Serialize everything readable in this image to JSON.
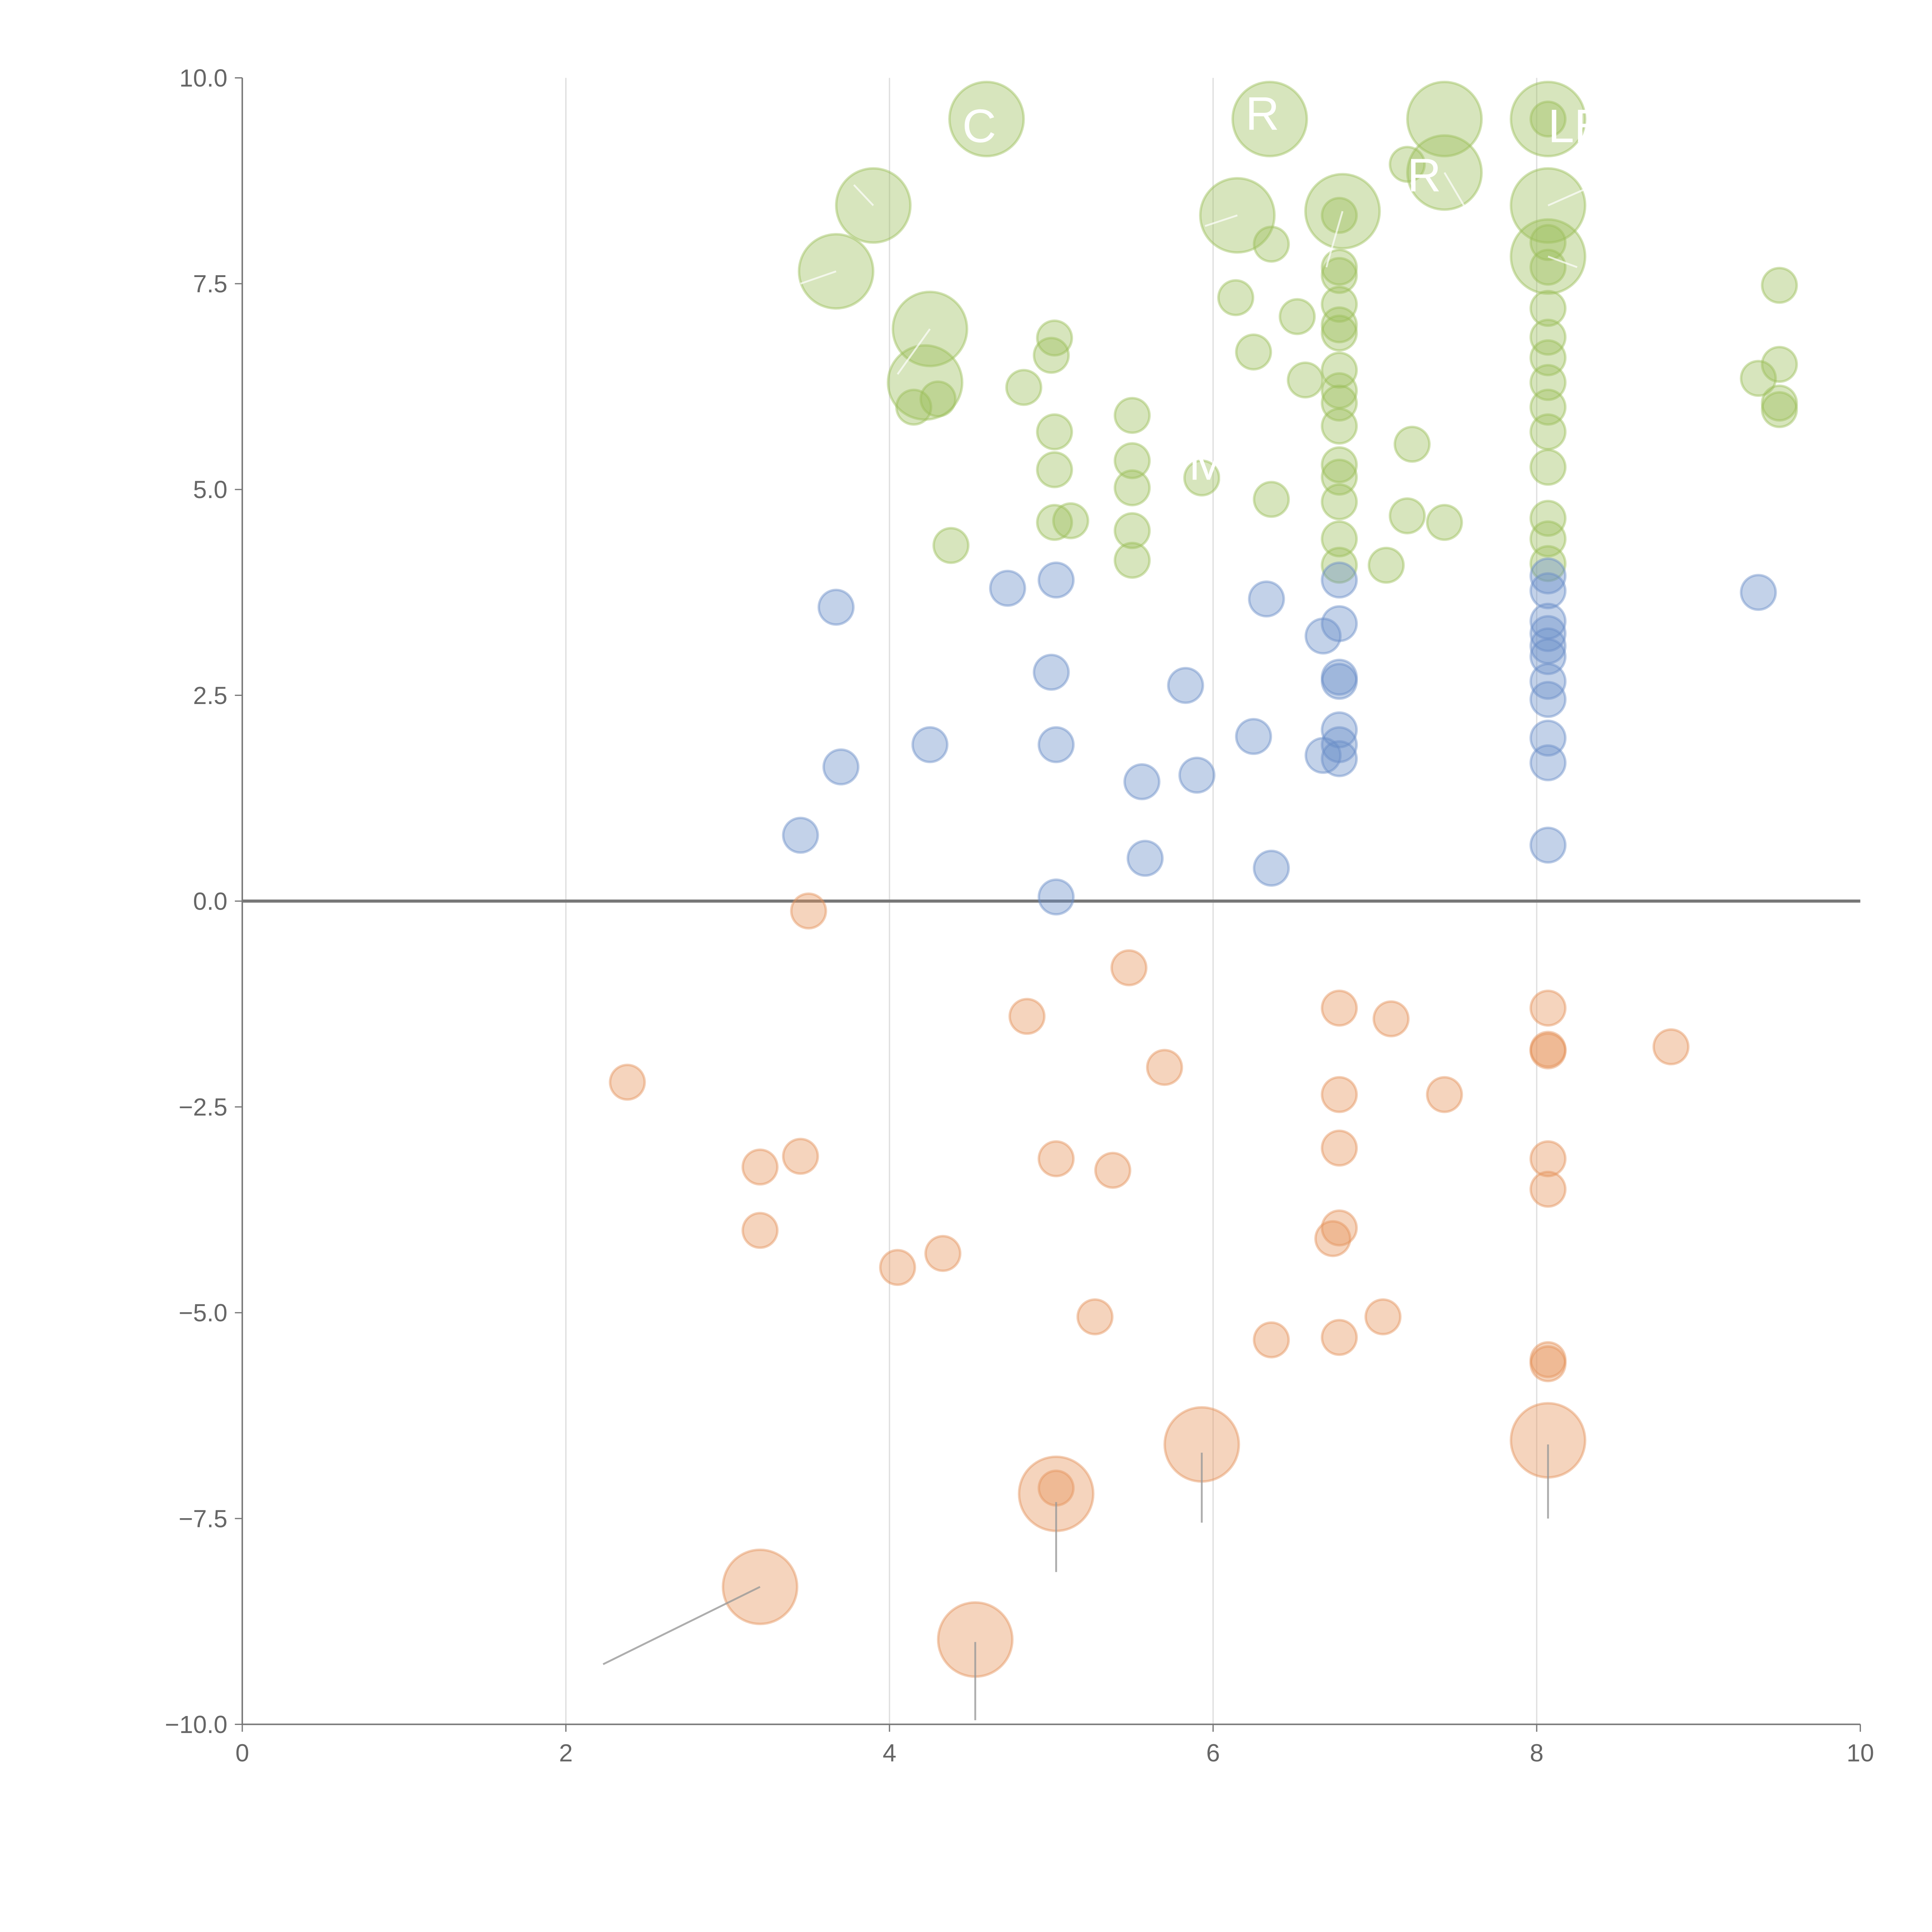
{
  "chart_data": {
    "type": "scatter",
    "title": "",
    "xlabel": "",
    "ylabel": "",
    "xlim": [
      0,
      10
    ],
    "ylim": [
      -10,
      10
    ],
    "x_ticks": [
      "0",
      "2",
      "4",
      "6",
      "8",
      "10"
    ],
    "y_ticks": [
      "−10.0",
      "−7.5",
      "−5.0",
      "−2.5",
      "0.0",
      "2.5",
      "5.0",
      "7.5",
      "10.0"
    ],
    "grid": "vertical lines at x ticks",
    "legend": "none",
    "colors": {
      "green": "#9bbf59",
      "blue": "#6a8fc8",
      "orange": "#e5935a",
      "axis": "#777777"
    },
    "series": [
      {
        "name": "green",
        "size": "small",
        "points": [
          [
            4.15,
            6.0
          ],
          [
            4.3,
            6.1
          ],
          [
            4.38,
            4.32
          ],
          [
            4.83,
            6.24
          ],
          [
            5.02,
            6.84
          ],
          [
            5.0,
            6.63
          ],
          [
            5.02,
            5.7
          ],
          [
            5.02,
            5.24
          ],
          [
            5.02,
            4.6
          ],
          [
            5.12,
            4.62
          ],
          [
            5.5,
            5.9
          ],
          [
            5.5,
            5.35
          ],
          [
            5.5,
            5.02
          ],
          [
            5.5,
            4.5
          ],
          [
            5.5,
            4.14
          ],
          [
            5.93,
            5.14
          ],
          [
            6.14,
            7.33
          ],
          [
            6.25,
            6.67
          ],
          [
            6.36,
            7.98
          ],
          [
            6.36,
            4.88
          ],
          [
            6.52,
            7.1
          ],
          [
            6.57,
            6.33
          ],
          [
            6.78,
            8.33
          ],
          [
            6.78,
            7.7
          ],
          [
            6.78,
            7.6
          ],
          [
            6.78,
            7.25
          ],
          [
            6.78,
            7.0
          ],
          [
            6.78,
            6.9
          ],
          [
            6.78,
            6.45
          ],
          [
            6.78,
            6.2
          ],
          [
            6.78,
            6.05
          ],
          [
            6.78,
            5.77
          ],
          [
            6.78,
            5.3
          ],
          [
            6.78,
            5.15
          ],
          [
            6.78,
            4.85
          ],
          [
            6.78,
            4.4
          ],
          [
            6.78,
            4.08
          ],
          [
            7.07,
            4.08
          ],
          [
            7.2,
            8.95
          ],
          [
            7.23,
            5.55
          ],
          [
            7.2,
            4.68
          ],
          [
            7.43,
            4.6
          ],
          [
            8.07,
            9.5
          ],
          [
            8.07,
            8.0
          ],
          [
            8.07,
            7.7
          ],
          [
            8.07,
            7.2
          ],
          [
            8.07,
            6.85
          ],
          [
            8.07,
            6.6
          ],
          [
            8.07,
            6.3
          ],
          [
            8.07,
            6.0
          ],
          [
            8.07,
            5.7
          ],
          [
            8.07,
            5.27
          ],
          [
            8.07,
            4.65
          ],
          [
            8.07,
            4.4
          ],
          [
            8.07,
            4.1
          ],
          [
            9.37,
            6.35
          ],
          [
            9.5,
            7.48
          ],
          [
            9.5,
            6.52
          ],
          [
            9.5,
            6.05
          ],
          [
            9.5,
            5.97
          ]
        ]
      },
      {
        "name": "green",
        "size": "large",
        "points": [
          [
            3.67,
            7.65
          ],
          [
            3.9,
            8.45
          ],
          [
            4.22,
            6.3
          ],
          [
            4.25,
            6.95
          ],
          [
            4.6,
            9.5
          ],
          [
            6.15,
            8.33
          ],
          [
            6.35,
            9.5
          ],
          [
            6.8,
            8.38
          ],
          [
            7.43,
            9.5
          ],
          [
            7.43,
            8.85
          ],
          [
            8.07,
            9.5
          ],
          [
            8.07,
            8.45
          ],
          [
            8.07,
            7.83
          ]
        ]
      },
      {
        "name": "blue",
        "size": "small",
        "points": [
          [
            3.45,
            0.8
          ],
          [
            3.67,
            3.57
          ],
          [
            3.7,
            1.63
          ],
          [
            4.25,
            1.9
          ],
          [
            4.73,
            3.8
          ],
          [
            5.0,
            2.78
          ],
          [
            5.03,
            3.9
          ],
          [
            5.03,
            1.9
          ],
          [
            5.03,
            0.05
          ],
          [
            5.56,
            1.45
          ],
          [
            5.58,
            0.52
          ],
          [
            5.83,
            2.62
          ],
          [
            5.9,
            1.53
          ],
          [
            6.25,
            2.0
          ],
          [
            6.33,
            3.67
          ],
          [
            6.36,
            0.4
          ],
          [
            6.68,
            3.22
          ],
          [
            6.68,
            1.77
          ],
          [
            6.78,
            3.9
          ],
          [
            6.78,
            3.37
          ],
          [
            6.78,
            2.72
          ],
          [
            6.78,
            2.67
          ],
          [
            6.78,
            2.08
          ],
          [
            6.78,
            1.9
          ],
          [
            6.78,
            1.73
          ],
          [
            8.07,
            3.95
          ],
          [
            8.07,
            3.77
          ],
          [
            8.07,
            3.4
          ],
          [
            8.07,
            3.25
          ],
          [
            8.07,
            3.1
          ],
          [
            8.07,
            2.97
          ],
          [
            8.07,
            2.67
          ],
          [
            8.07,
            2.45
          ],
          [
            8.07,
            1.98
          ],
          [
            8.07,
            1.68
          ],
          [
            8.07,
            0.68
          ],
          [
            9.37,
            3.75
          ]
        ]
      },
      {
        "name": "orange",
        "size": "small",
        "points": [
          [
            2.38,
            -2.2
          ],
          [
            3.2,
            -3.23
          ],
          [
            3.2,
            -4.0
          ],
          [
            3.45,
            -3.1
          ],
          [
            3.5,
            -0.12
          ],
          [
            4.05,
            -4.45
          ],
          [
            4.33,
            -4.28
          ],
          [
            4.85,
            -1.4
          ],
          [
            5.03,
            -3.13
          ],
          [
            5.03,
            -7.13
          ],
          [
            5.27,
            -5.05
          ],
          [
            5.38,
            -3.27
          ],
          [
            5.48,
            -0.81
          ],
          [
            5.7,
            -2.02
          ],
          [
            6.36,
            -5.33
          ],
          [
            6.74,
            -4.1
          ],
          [
            6.78,
            -1.3
          ],
          [
            6.78,
            -2.35
          ],
          [
            6.78,
            -3.0
          ],
          [
            6.78,
            -3.97
          ],
          [
            6.78,
            -5.3
          ],
          [
            7.05,
            -5.05
          ],
          [
            7.1,
            -1.43
          ],
          [
            7.43,
            -2.35
          ],
          [
            8.07,
            -1.3
          ],
          [
            8.07,
            -1.8
          ],
          [
            8.07,
            -1.82
          ],
          [
            8.07,
            -3.13
          ],
          [
            8.07,
            -3.5
          ],
          [
            8.07,
            -5.57
          ],
          [
            8.07,
            -5.62
          ],
          [
            8.83,
            -1.77
          ]
        ]
      },
      {
        "name": "orange",
        "size": "large",
        "points": [
          [
            3.2,
            -8.33
          ],
          [
            4.53,
            -8.97
          ],
          [
            5.03,
            -7.2
          ],
          [
            5.93,
            -6.6
          ],
          [
            8.07,
            -6.55
          ]
        ]
      }
    ],
    "leader_lines": [
      [
        [
          3.2,
          -8.33
        ],
        [
          2.23,
          -9.27
        ]
      ],
      [
        [
          4.53,
          -9.0
        ],
        [
          4.53,
          -9.95
        ]
      ],
      [
        [
          5.03,
          -7.3
        ],
        [
          5.03,
          -8.15
        ]
      ],
      [
        [
          5.93,
          -6.7
        ],
        [
          5.93,
          -7.55
        ]
      ],
      [
        [
          8.07,
          -6.6
        ],
        [
          8.07,
          -7.5
        ]
      ],
      [
        [
          3.9,
          8.45
        ],
        [
          3.78,
          8.7
        ]
      ],
      [
        [
          3.67,
          7.65
        ],
        [
          3.45,
          7.5
        ]
      ],
      [
        [
          4.25,
          6.95
        ],
        [
          4.05,
          6.4
        ]
      ],
      [
        [
          6.15,
          8.33
        ],
        [
          5.95,
          8.2
        ]
      ],
      [
        [
          6.8,
          8.38
        ],
        [
          6.7,
          7.7
        ]
      ],
      [
        [
          7.43,
          8.85
        ],
        [
          7.55,
          8.45
        ]
      ],
      [
        [
          8.07,
          8.45
        ],
        [
          8.3,
          8.65
        ]
      ],
      [
        [
          8.07,
          7.83
        ],
        [
          8.25,
          7.7
        ]
      ]
    ],
    "annotations": [
      {
        "text": "C",
        "x": 4.45,
        "y": 9.4
      },
      {
        "text": "R",
        "x": 6.2,
        "y": 9.55
      },
      {
        "text": "R",
        "x": 7.2,
        "y": 8.8
      },
      {
        "text": "LE",
        "x": 8.07,
        "y": 9.4
      },
      {
        "text": "M",
        "x": 5.85,
        "y": 5.3
      }
    ]
  }
}
